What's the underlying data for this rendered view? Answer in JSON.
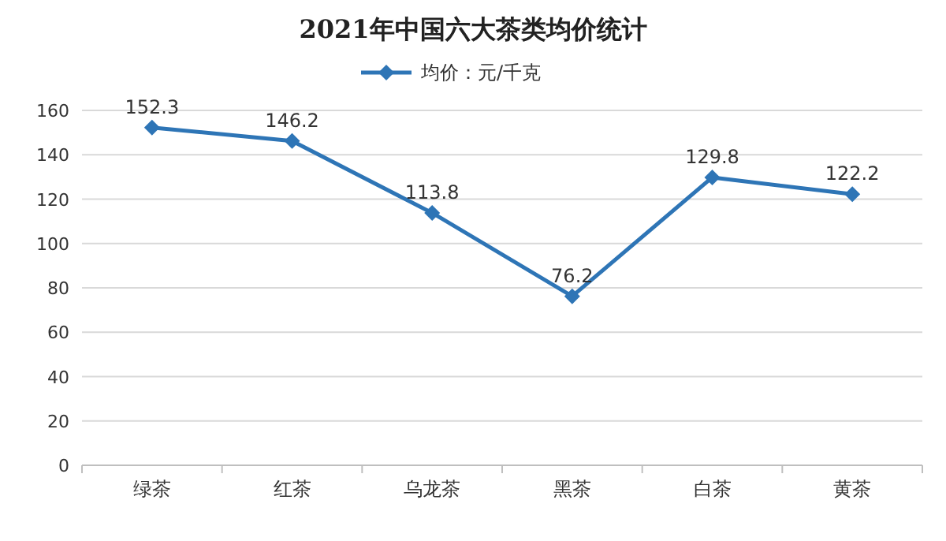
{
  "chart_data": {
    "type": "line",
    "title": "2021年中国六大茶类均价统计",
    "categories": [
      "绿茶",
      "红茶",
      "乌龙茶",
      "黑茶",
      "白茶",
      "黄茶"
    ],
    "series": [
      {
        "name": "均价：元/千克",
        "color": "#2e75b6",
        "values": [
          152.3,
          146.2,
          113.8,
          76.2,
          129.8,
          122.2
        ]
      }
    ],
    "ylim": [
      0,
      160
    ],
    "yticks": [
      0,
      20,
      40,
      60,
      80,
      100,
      120,
      140,
      160
    ],
    "grid": "y",
    "legend": "top",
    "marker": "diamond",
    "line_style": "solid",
    "data_labels": true
  }
}
